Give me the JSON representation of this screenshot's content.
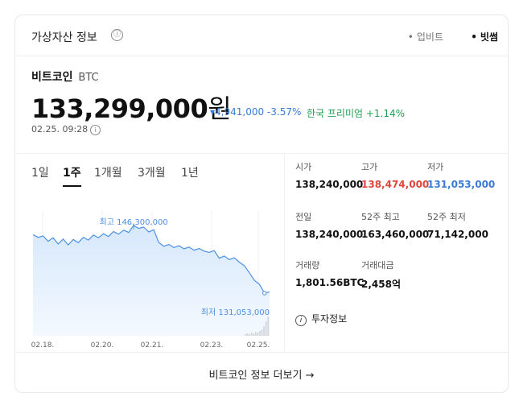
{
  "header": {
    "title": "가상자산 정보",
    "info_icon": "ⓘ",
    "exchanges": [
      {
        "label": "업비트",
        "selected": false
      },
      {
        "label": "빗썸",
        "selected": true
      }
    ]
  },
  "coin": {
    "name": "비트코인",
    "symbol": "BTC",
    "price": "133,299,000",
    "price_unit": "원",
    "change": "▾4,941,000 -3.57%",
    "premium": "한국 프리미엄 +1.14%",
    "timestamp": "02.25. 09:28"
  },
  "tabs": [
    {
      "label": "1일",
      "active": false
    },
    {
      "label": "1주",
      "active": true
    },
    {
      "label": "1개월",
      "active": false
    },
    {
      "label": "3개월",
      "active": false
    },
    {
      "label": "1년",
      "active": false
    }
  ],
  "chart_data": {
    "type": "area",
    "x_ticks": [
      "02.18.",
      "02.20.",
      "02.21.",
      "02.23.",
      "02.25."
    ],
    "values": [
      144.2,
      143.6,
      143.9,
      142.7,
      143.5,
      142.1,
      143.2,
      141.9,
      143.1,
      142.4,
      143.6,
      143.0,
      144.1,
      143.5,
      144.4,
      143.8,
      144.9,
      144.3,
      145.2,
      144.7,
      146.3,
      145.6,
      145.9,
      144.8,
      145.3,
      142.4,
      141.6,
      142.0,
      141.3,
      141.7,
      141.0,
      141.4,
      140.7,
      141.1,
      140.5,
      140.2,
      140.6,
      138.9,
      139.4,
      138.6,
      139.0,
      138.0,
      137.2,
      135.6,
      133.9,
      133.0,
      131.05,
      131.3
    ],
    "annotations": {
      "high": {
        "label": "최고 146,300,000",
        "value": 146.3
      },
      "low": {
        "label": "최저 131,053,000",
        "value": 131.05
      }
    },
    "colors": {
      "line": "#4a90e2",
      "fill_top": "#d6e8fb",
      "fill_bottom": "#f4f9ff",
      "volume": "#d3d6db"
    }
  },
  "stats": [
    {
      "label": "시가",
      "value": "138,240,000",
      "tone": "normal"
    },
    {
      "label": "고가",
      "value": "138,474,000",
      "tone": "up"
    },
    {
      "label": "저가",
      "value": "131,053,000",
      "tone": "down"
    },
    {
      "label": "전일",
      "value": "138,240,000",
      "tone": "normal"
    },
    {
      "label": "52주 최고",
      "value": "163,460,000",
      "tone": "normal"
    },
    {
      "label": "52주 최저",
      "value": "71,142,000",
      "tone": "normal"
    },
    {
      "label": "거래량",
      "value": "1,801.56BTC",
      "tone": "normal"
    },
    {
      "label": "거래대금",
      "value": "2,458억",
      "tone": "normal"
    }
  ],
  "invest": {
    "icon": "i",
    "label": "투자정보"
  },
  "footer": {
    "more_label": "비트코인 정보 더보기 →"
  }
}
